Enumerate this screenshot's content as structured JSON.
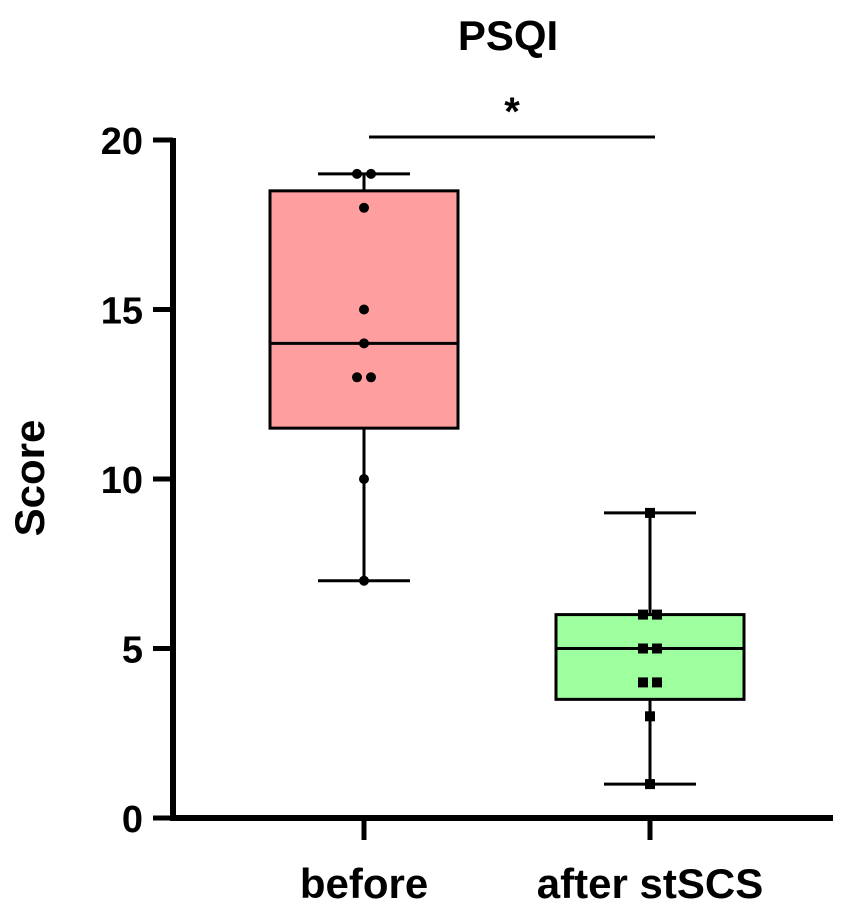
{
  "chart_data": {
    "type": "box",
    "title": "PSQI",
    "ylabel": "Score",
    "xlabel": "",
    "ylim": [
      0,
      20
    ],
    "yticks": [
      0,
      5,
      10,
      15,
      20
    ],
    "categories": [
      "before",
      "after stSCS"
    ],
    "series": [
      {
        "category": "before",
        "color": "#FF9E9E",
        "marker": "circle",
        "min": 7,
        "q1": 11.5,
        "median": 14,
        "q3": 18.5,
        "max": 19,
        "points": [
          19,
          19,
          18,
          15,
          14,
          13,
          13,
          10,
          7
        ]
      },
      {
        "category": "after stSCS",
        "color": "#9EFF9E",
        "marker": "square",
        "min": 1,
        "q1": 3.5,
        "median": 5,
        "q3": 6,
        "max": 9,
        "points": [
          9,
          6,
          6,
          5,
          5,
          4,
          4,
          3,
          1
        ]
      }
    ],
    "significance": {
      "between": [
        "before",
        "after stSCS"
      ],
      "label": "*"
    },
    "grid": false,
    "legend": "none"
  }
}
